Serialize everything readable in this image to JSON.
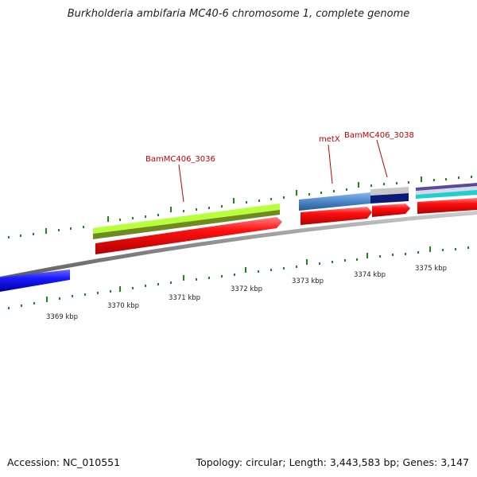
{
  "header": {
    "title": "Burkholderia ambifaria MC40-6 chromosome 1, complete genome"
  },
  "footer": {
    "accession": "Accession: NC_010551",
    "summary": "Topology: circular; Length: 3,443,583 bp; Genes: 3,147"
  },
  "scale": {
    "tick_labels": [
      "3369 kbp",
      "3370 kbp",
      "3371 kbp",
      "3372 kbp",
      "3373 kbp",
      "3374 kbp",
      "3375 kbp"
    ]
  },
  "gene_labels": [
    "BamMC406_3036",
    "metX",
    "BamMC406_3038"
  ],
  "colors": {
    "backbone": "#8a8a8a",
    "cds_red": "#ff1010",
    "lime": "#b8ff3c",
    "olive": "#6f8a1e",
    "blue": "#1a1aff",
    "steelblue": "#4a86c8",
    "navy": "#0a1a78",
    "silver": "#c8c8c8",
    "cyan": "#20d0d0",
    "tick": "#1a8a1a",
    "label": "#c00000"
  }
}
